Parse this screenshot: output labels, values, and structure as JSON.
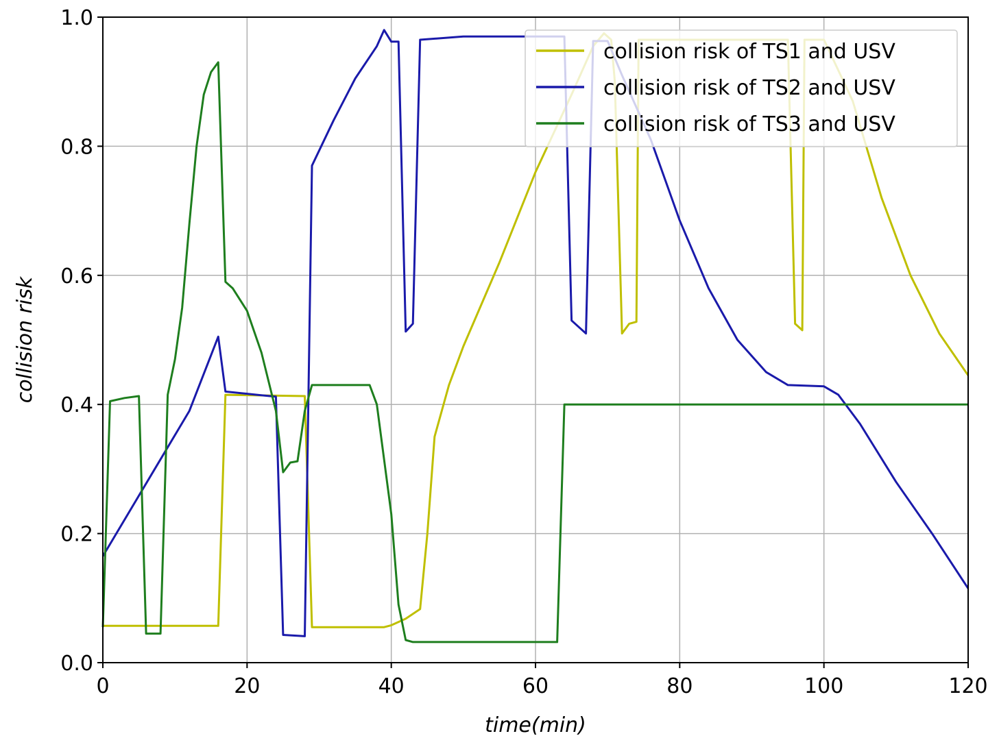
{
  "chart_data": {
    "type": "line",
    "title": "",
    "xlabel": "time(min)",
    "ylabel": "collision risk",
    "xlim": [
      0,
      120
    ],
    "ylim": [
      0,
      1.0
    ],
    "xticks": [
      0,
      20,
      40,
      60,
      80,
      100,
      120
    ],
    "yticks": [
      0.0,
      0.2,
      0.4,
      0.6,
      0.8,
      1.0
    ],
    "xtick_labels": [
      "0",
      "20",
      "40",
      "60",
      "80",
      "100",
      "120"
    ],
    "ytick_labels": [
      "0.0",
      "0.2",
      "0.4",
      "0.6",
      "0.8",
      "1.0"
    ],
    "grid": true,
    "legend_position": "top-right",
    "series": [
      {
        "name": "collision risk of TS1 and USV",
        "color": "#bfbf00",
        "points": [
          [
            0,
            0.057
          ],
          [
            16,
            0.057
          ],
          [
            17,
            0.415
          ],
          [
            28,
            0.413
          ],
          [
            29,
            0.055
          ],
          [
            39,
            0.055
          ],
          [
            40,
            0.058
          ],
          [
            42,
            0.068
          ],
          [
            44,
            0.083
          ],
          [
            45,
            0.2
          ],
          [
            46,
            0.35
          ],
          [
            48,
            0.43
          ],
          [
            50,
            0.49
          ],
          [
            55,
            0.62
          ],
          [
            60,
            0.76
          ],
          [
            65,
            0.88
          ],
          [
            68,
            0.955
          ],
          [
            69.5,
            0.975
          ],
          [
            70.5,
            0.965
          ],
          [
            71,
            0.9
          ],
          [
            72,
            0.51
          ],
          [
            73,
            0.525
          ],
          [
            74,
            0.528
          ],
          [
            74.3,
            0.965
          ],
          [
            80,
            0.965
          ],
          [
            90,
            0.965
          ],
          [
            95,
            0.965
          ],
          [
            96,
            0.525
          ],
          [
            97,
            0.515
          ],
          [
            97.3,
            0.965
          ],
          [
            100,
            0.965
          ],
          [
            104,
            0.87
          ],
          [
            108,
            0.72
          ],
          [
            112,
            0.6
          ],
          [
            116,
            0.51
          ],
          [
            120,
            0.445
          ]
        ]
      },
      {
        "name": "collision risk of TS2 and USV",
        "color": "#1a1aaa",
        "points": [
          [
            0,
            0.165
          ],
          [
            4,
            0.24
          ],
          [
            8,
            0.315
          ],
          [
            12,
            0.39
          ],
          [
            16,
            0.505
          ],
          [
            17,
            0.42
          ],
          [
            24,
            0.412
          ],
          [
            25,
            0.043
          ],
          [
            28,
            0.041
          ],
          [
            29,
            0.77
          ],
          [
            32,
            0.84
          ],
          [
            35,
            0.905
          ],
          [
            38,
            0.955
          ],
          [
            39,
            0.98
          ],
          [
            40,
            0.962
          ],
          [
            41,
            0.962
          ],
          [
            42,
            0.513
          ],
          [
            43,
            0.525
          ],
          [
            44,
            0.965
          ],
          [
            50,
            0.97
          ],
          [
            60,
            0.97
          ],
          [
            64,
            0.97
          ],
          [
            65,
            0.53
          ],
          [
            66,
            0.52
          ],
          [
            67,
            0.51
          ],
          [
            68,
            0.963
          ],
          [
            70,
            0.963
          ],
          [
            72,
            0.91
          ],
          [
            76,
            0.81
          ],
          [
            80,
            0.685
          ],
          [
            84,
            0.58
          ],
          [
            88,
            0.5
          ],
          [
            92,
            0.45
          ],
          [
            95,
            0.43
          ],
          [
            100,
            0.428
          ],
          [
            102,
            0.415
          ],
          [
            105,
            0.37
          ],
          [
            110,
            0.28
          ],
          [
            115,
            0.2
          ],
          [
            120,
            0.115
          ]
        ]
      },
      {
        "name": "collision risk of TS3 and USV",
        "color": "#1e7e1e",
        "points": [
          [
            0,
            0.055
          ],
          [
            1,
            0.405
          ],
          [
            3,
            0.41
          ],
          [
            5,
            0.413
          ],
          [
            6,
            0.045
          ],
          [
            8,
            0.045
          ],
          [
            9,
            0.415
          ],
          [
            10,
            0.47
          ],
          [
            11,
            0.55
          ],
          [
            12,
            0.68
          ],
          [
            13,
            0.8
          ],
          [
            14,
            0.88
          ],
          [
            15,
            0.915
          ],
          [
            16,
            0.93
          ],
          [
            17,
            0.59
          ],
          [
            18,
            0.58
          ],
          [
            20,
            0.545
          ],
          [
            22,
            0.48
          ],
          [
            24,
            0.39
          ],
          [
            25,
            0.295
          ],
          [
            26,
            0.31
          ],
          [
            27,
            0.312
          ],
          [
            28,
            0.39
          ],
          [
            29,
            0.43
          ],
          [
            37,
            0.43
          ],
          [
            38,
            0.4
          ],
          [
            40,
            0.23
          ],
          [
            41,
            0.09
          ],
          [
            42,
            0.035
          ],
          [
            43,
            0.032
          ],
          [
            60,
            0.032
          ],
          [
            63,
            0.032
          ],
          [
            64,
            0.4
          ],
          [
            120,
            0.4
          ]
        ]
      }
    ]
  }
}
